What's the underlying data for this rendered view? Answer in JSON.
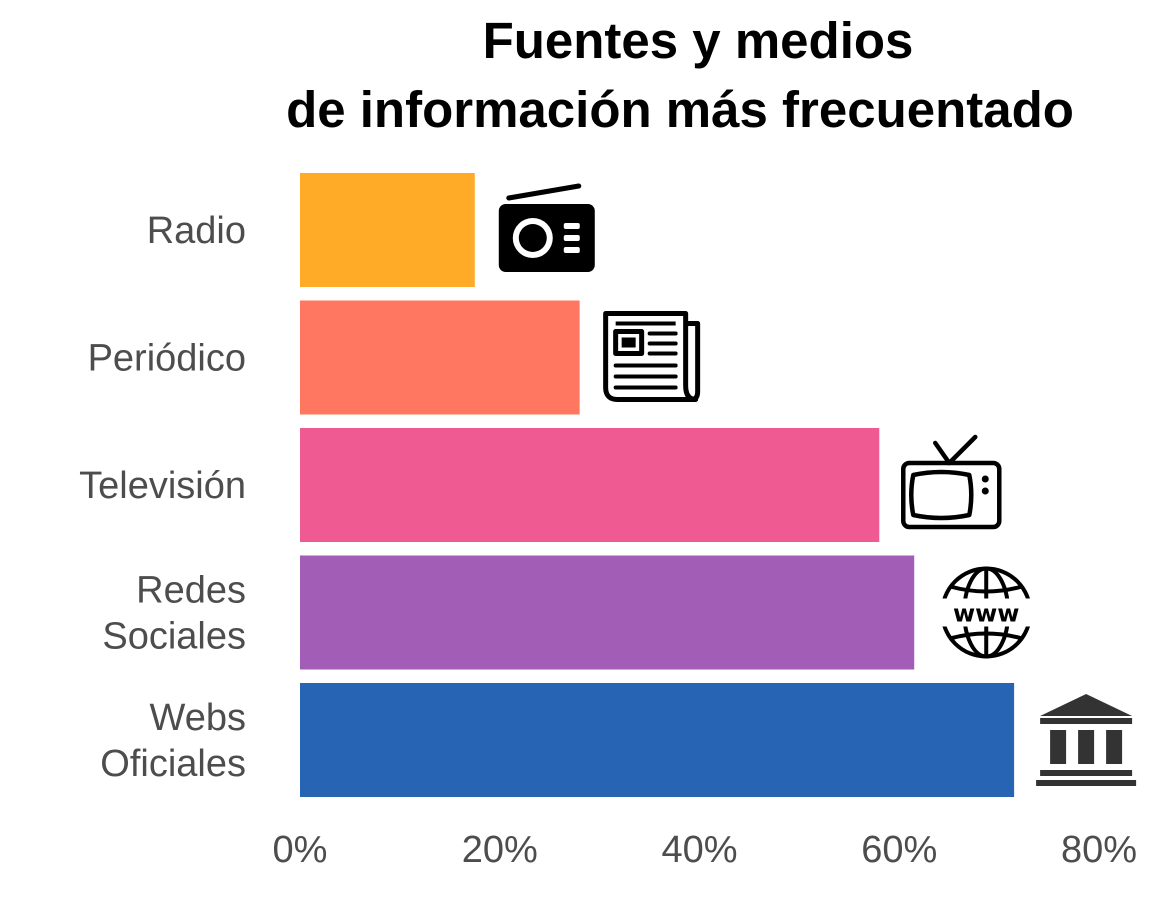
{
  "chart_data": {
    "type": "bar",
    "orientation": "horizontal",
    "title_lines": [
      "Fuentes y medios",
      "de información más frecuentado"
    ],
    "categories": [
      {
        "label_lines": [
          "Radio"
        ],
        "value": 17.5,
        "color": "#FFAB28",
        "icon": "radio-icon"
      },
      {
        "label_lines": [
          "Periódico"
        ],
        "value": 28,
        "color": "#FF7761",
        "icon": "newspaper-icon"
      },
      {
        "label_lines": [
          "Televisión"
        ],
        "value": 58,
        "color": "#EF5A92",
        "icon": "television-icon"
      },
      {
        "label_lines": [
          "Redes",
          "Sociales"
        ],
        "value": 61.5,
        "color": "#A25EB6",
        "icon": "www-globe-icon"
      },
      {
        "label_lines": [
          "Webs",
          "Oficiales"
        ],
        "value": 71.5,
        "color": "#2764B4",
        "icon": "government-building-icon"
      }
    ],
    "x_ticks": [
      {
        "value": 0,
        "label": "0%"
      },
      {
        "value": 20,
        "label": "20%"
      },
      {
        "value": 40,
        "label": "40%"
      },
      {
        "value": 60,
        "label": "60%"
      },
      {
        "value": 80,
        "label": "80%"
      }
    ],
    "xlim": [
      0,
      80
    ],
    "xlabel": "",
    "ylabel": "",
    "grid": false,
    "legend": "none"
  }
}
